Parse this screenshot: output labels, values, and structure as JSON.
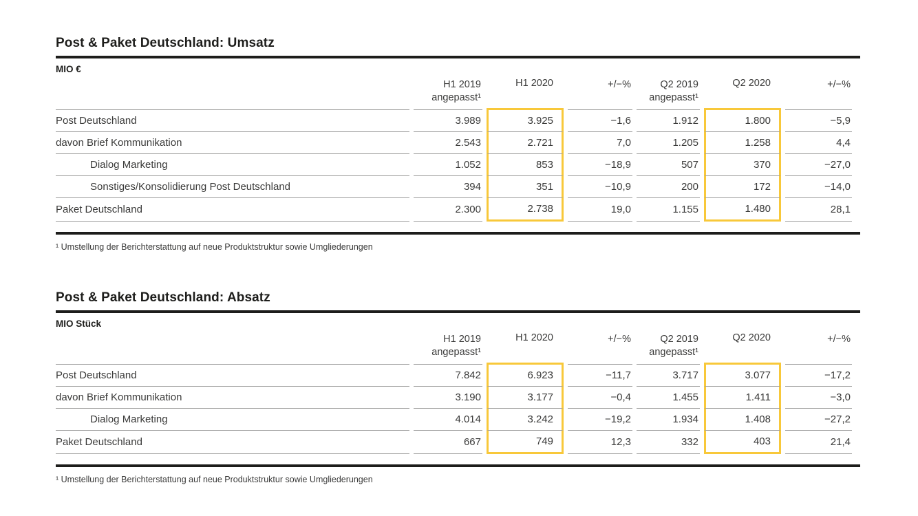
{
  "colors": {
    "highlight": "#f8c83a",
    "rule_thick": "#1d1d1b",
    "rule_thin": "#9c9c9b",
    "title_text": "#1d1d1b",
    "body_text": "#3a3a39"
  },
  "tables": [
    {
      "title": "Post & Paket Deutschland: Umsatz",
      "unit": "MIO €",
      "columns": [
        {
          "line1": "H1 2019",
          "line2": "angepasst¹",
          "highlight": false
        },
        {
          "line1": "H1 2020",
          "line2": "",
          "highlight": true
        },
        {
          "line1": "+/−%",
          "line2": "",
          "highlight": false
        },
        {
          "line1": "Q2 2019",
          "line2": "angepasst¹",
          "highlight": false
        },
        {
          "line1": "Q2 2020",
          "line2": "",
          "highlight": true
        },
        {
          "line1": "+/−%",
          "line2": "",
          "highlight": false
        }
      ],
      "rows": [
        {
          "label": "Post Deutschland",
          "indent": 0,
          "values": [
            "3.989",
            "3.925",
            "−1,6",
            "1.912",
            "1.800",
            "−5,9"
          ]
        },
        {
          "label": "davon Brief Kommunikation",
          "indent": 0,
          "values": [
            "2.543",
            "2.721",
            "7,0",
            "1.205",
            "1.258",
            "4,4"
          ]
        },
        {
          "label": "Dialog Marketing",
          "indent": 1,
          "values": [
            "1.052",
            "853",
            "−18,9",
            "507",
            "370",
            "−27,0"
          ]
        },
        {
          "label": "Sonstiges/Konsolidierung Post Deutschland",
          "indent": 1,
          "values": [
            "394",
            "351",
            "−10,9",
            "200",
            "172",
            "−14,0"
          ]
        },
        {
          "label": "Paket Deutschland",
          "indent": 0,
          "values": [
            "2.300",
            "2.738",
            "19,0",
            "1.155",
            "1.480",
            "28,1"
          ]
        }
      ],
      "footnote": "¹  Umstellung der Berichterstattung auf neue Produktstruktur sowie Umgliederungen"
    },
    {
      "title": "Post & Paket Deutschland: Absatz",
      "unit": "MIO Stück",
      "columns": [
        {
          "line1": "H1 2019",
          "line2": "angepasst¹",
          "highlight": false
        },
        {
          "line1": "H1 2020",
          "line2": "",
          "highlight": true
        },
        {
          "line1": "+/−%",
          "line2": "",
          "highlight": false
        },
        {
          "line1": "Q2 2019",
          "line2": "angepasst¹",
          "highlight": false
        },
        {
          "line1": "Q2 2020",
          "line2": "",
          "highlight": true
        },
        {
          "line1": "+/−%",
          "line2": "",
          "highlight": false
        }
      ],
      "rows": [
        {
          "label": "Post Deutschland",
          "indent": 0,
          "values": [
            "7.842",
            "6.923",
            "−11,7",
            "3.717",
            "3.077",
            "−17,2"
          ]
        },
        {
          "label": "davon Brief Kommunikation",
          "indent": 0,
          "values": [
            "3.190",
            "3.177",
            "−0,4",
            "1.455",
            "1.411",
            "−3,0"
          ]
        },
        {
          "label": "Dialog Marketing",
          "indent": 1,
          "values": [
            "4.014",
            "3.242",
            "−19,2",
            "1.934",
            "1.408",
            "−27,2"
          ]
        },
        {
          "label": "Paket Deutschland",
          "indent": 0,
          "values": [
            "667",
            "749",
            "12,3",
            "332",
            "403",
            "21,4"
          ]
        }
      ],
      "footnote": "¹  Umstellung der Berichterstattung auf neue Produktstruktur sowie Umgliederungen"
    }
  ]
}
